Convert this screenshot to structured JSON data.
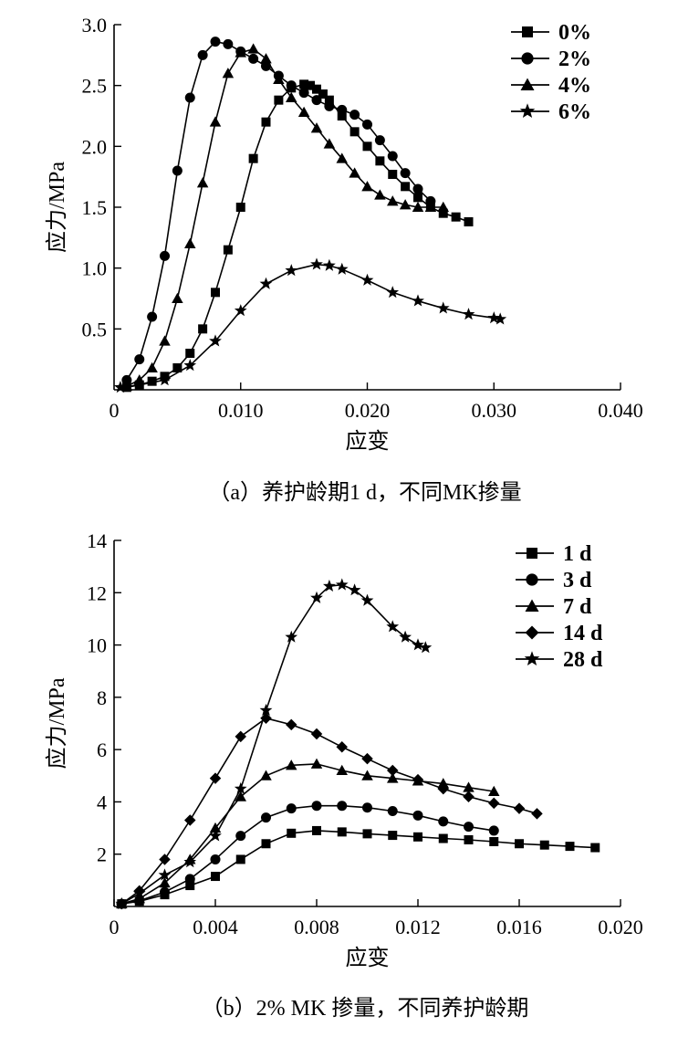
{
  "chart_data": [
    {
      "type": "line",
      "caption": "（a）养护龄期1 d，不同MK掺量",
      "xlabel": "应变",
      "ylabel": "应力/MPa",
      "xlim": [
        0,
        0.04
      ],
      "ylim": [
        0,
        3.0
      ],
      "x_ticks": [
        0.01,
        0.02,
        0.03,
        0.04
      ],
      "x_tick_labels": [
        "0.010",
        "0.020",
        "0.030",
        "0.040"
      ],
      "y_ticks": [
        0.5,
        1.0,
        1.5,
        2.0,
        2.5,
        3.0
      ],
      "y_tick_labels": [
        "0.5",
        "1.0",
        "1.5",
        "2.0",
        "2.5",
        "3.0"
      ],
      "origin_label": "0",
      "grid": false,
      "legend_position": "top-right",
      "series": [
        {
          "name": "0%",
          "marker": "square",
          "x": [
            0.001,
            0.002,
            0.003,
            0.004,
            0.005,
            0.006,
            0.007,
            0.008,
            0.009,
            0.01,
            0.011,
            0.012,
            0.013,
            0.014,
            0.015,
            0.0155,
            0.016,
            0.0165,
            0.017,
            0.018,
            0.019,
            0.02,
            0.021,
            0.022,
            0.023,
            0.024,
            0.025,
            0.026,
            0.027,
            0.028
          ],
          "y": [
            0.02,
            0.04,
            0.07,
            0.11,
            0.18,
            0.3,
            0.5,
            0.8,
            1.15,
            1.5,
            1.9,
            2.2,
            2.38,
            2.48,
            2.51,
            2.5,
            2.47,
            2.43,
            2.38,
            2.25,
            2.12,
            2.0,
            1.88,
            1.77,
            1.67,
            1.58,
            1.5,
            1.45,
            1.42,
            1.38
          ]
        },
        {
          "name": "2%",
          "marker": "circle",
          "x": [
            0.001,
            0.002,
            0.003,
            0.004,
            0.005,
            0.006,
            0.007,
            0.008,
            0.009,
            0.01,
            0.011,
            0.012,
            0.013,
            0.014,
            0.015,
            0.016,
            0.017,
            0.018,
            0.019,
            0.02,
            0.021,
            0.022,
            0.023,
            0.024,
            0.025
          ],
          "y": [
            0.08,
            0.25,
            0.6,
            1.1,
            1.8,
            2.4,
            2.75,
            2.86,
            2.84,
            2.78,
            2.72,
            2.66,
            2.58,
            2.5,
            2.44,
            2.38,
            2.33,
            2.3,
            2.26,
            2.18,
            2.05,
            1.92,
            1.78,
            1.65,
            1.55
          ]
        },
        {
          "name": "4%",
          "marker": "triangle",
          "x": [
            0.001,
            0.002,
            0.003,
            0.004,
            0.005,
            0.006,
            0.007,
            0.008,
            0.009,
            0.01,
            0.011,
            0.012,
            0.013,
            0.014,
            0.015,
            0.016,
            0.017,
            0.018,
            0.019,
            0.02,
            0.021,
            0.022,
            0.023,
            0.024,
            0.025,
            0.026
          ],
          "y": [
            0.03,
            0.08,
            0.18,
            0.4,
            0.75,
            1.2,
            1.7,
            2.2,
            2.6,
            2.77,
            2.8,
            2.72,
            2.55,
            2.4,
            2.28,
            2.15,
            2.02,
            1.9,
            1.78,
            1.67,
            1.6,
            1.55,
            1.52,
            1.5,
            1.5,
            1.5
          ]
        },
        {
          "name": "6%",
          "marker": "star",
          "x": [
            0.0005,
            0.002,
            0.004,
            0.006,
            0.008,
            0.01,
            0.012,
            0.014,
            0.016,
            0.017,
            0.018,
            0.02,
            0.022,
            0.024,
            0.026,
            0.028,
            0.03,
            0.0305
          ],
          "y": [
            0.02,
            0.04,
            0.08,
            0.2,
            0.4,
            0.65,
            0.87,
            0.98,
            1.03,
            1.02,
            0.99,
            0.9,
            0.8,
            0.73,
            0.67,
            0.62,
            0.59,
            0.58
          ]
        }
      ]
    },
    {
      "type": "line",
      "caption": "（b）2% MK 掺量，不同养护龄期",
      "xlabel": "应变",
      "ylabel": "应力/MPa",
      "xlim": [
        0,
        0.02
      ],
      "ylim": [
        0,
        14
      ],
      "x_ticks": [
        0,
        0.004,
        0.008,
        0.012,
        0.016,
        0.02
      ],
      "x_tick_labels": [
        "0",
        "0.004",
        "0.008",
        "0.012",
        "0.016",
        "0.020"
      ],
      "y_ticks": [
        2,
        4,
        6,
        8,
        10,
        12,
        14
      ],
      "y_tick_labels": [
        "2",
        "4",
        "6",
        "8",
        "10",
        "12",
        "14"
      ],
      "grid": false,
      "legend_position": "top-right",
      "series": [
        {
          "name": "1 d",
          "marker": "square",
          "x": [
            0.0003,
            0.001,
            0.002,
            0.003,
            0.004,
            0.005,
            0.006,
            0.007,
            0.008,
            0.009,
            0.01,
            0.011,
            0.012,
            0.013,
            0.014,
            0.015,
            0.016,
            0.017,
            0.018,
            0.019
          ],
          "y": [
            0.1,
            0.2,
            0.45,
            0.8,
            1.15,
            1.8,
            2.4,
            2.8,
            2.9,
            2.85,
            2.78,
            2.72,
            2.66,
            2.6,
            2.55,
            2.48,
            2.4,
            2.35,
            2.3,
            2.25
          ]
        },
        {
          "name": "3 d",
          "marker": "circle",
          "x": [
            0.0003,
            0.001,
            0.002,
            0.003,
            0.004,
            0.005,
            0.006,
            0.007,
            0.008,
            0.009,
            0.01,
            0.011,
            0.012,
            0.013,
            0.014,
            0.015
          ],
          "y": [
            0.1,
            0.22,
            0.55,
            1.05,
            1.8,
            2.7,
            3.4,
            3.75,
            3.85,
            3.85,
            3.78,
            3.65,
            3.48,
            3.25,
            3.05,
            2.9
          ]
        },
        {
          "name": "7 d",
          "marker": "triangle",
          "x": [
            0.0003,
            0.001,
            0.002,
            0.003,
            0.004,
            0.005,
            0.006,
            0.007,
            0.008,
            0.009,
            0.01,
            0.011,
            0.012,
            0.013,
            0.014,
            0.015
          ],
          "y": [
            0.1,
            0.3,
            0.9,
            1.8,
            3.0,
            4.2,
            5.0,
            5.4,
            5.45,
            5.2,
            5.0,
            4.9,
            4.8,
            4.7,
            4.55,
            4.4
          ]
        },
        {
          "name": "14 d",
          "marker": "diamond",
          "x": [
            0.0003,
            0.001,
            0.002,
            0.003,
            0.004,
            0.005,
            0.006,
            0.007,
            0.008,
            0.009,
            0.01,
            0.011,
            0.012,
            0.013,
            0.014,
            0.015,
            0.016,
            0.0167
          ],
          "y": [
            0.1,
            0.6,
            1.8,
            3.3,
            4.9,
            6.5,
            7.2,
            6.95,
            6.6,
            6.1,
            5.65,
            5.2,
            4.85,
            4.5,
            4.2,
            3.95,
            3.75,
            3.55
          ]
        },
        {
          "name": "28 d",
          "marker": "star",
          "x": [
            0.0003,
            0.001,
            0.002,
            0.003,
            0.004,
            0.005,
            0.006,
            0.007,
            0.008,
            0.0085,
            0.009,
            0.0095,
            0.01,
            0.011,
            0.0115,
            0.012,
            0.0123
          ],
          "y": [
            0.1,
            0.5,
            1.2,
            1.7,
            2.7,
            4.5,
            7.5,
            10.3,
            11.8,
            12.25,
            12.3,
            12.1,
            11.7,
            10.7,
            10.3,
            10.0,
            9.9
          ]
        }
      ]
    }
  ]
}
